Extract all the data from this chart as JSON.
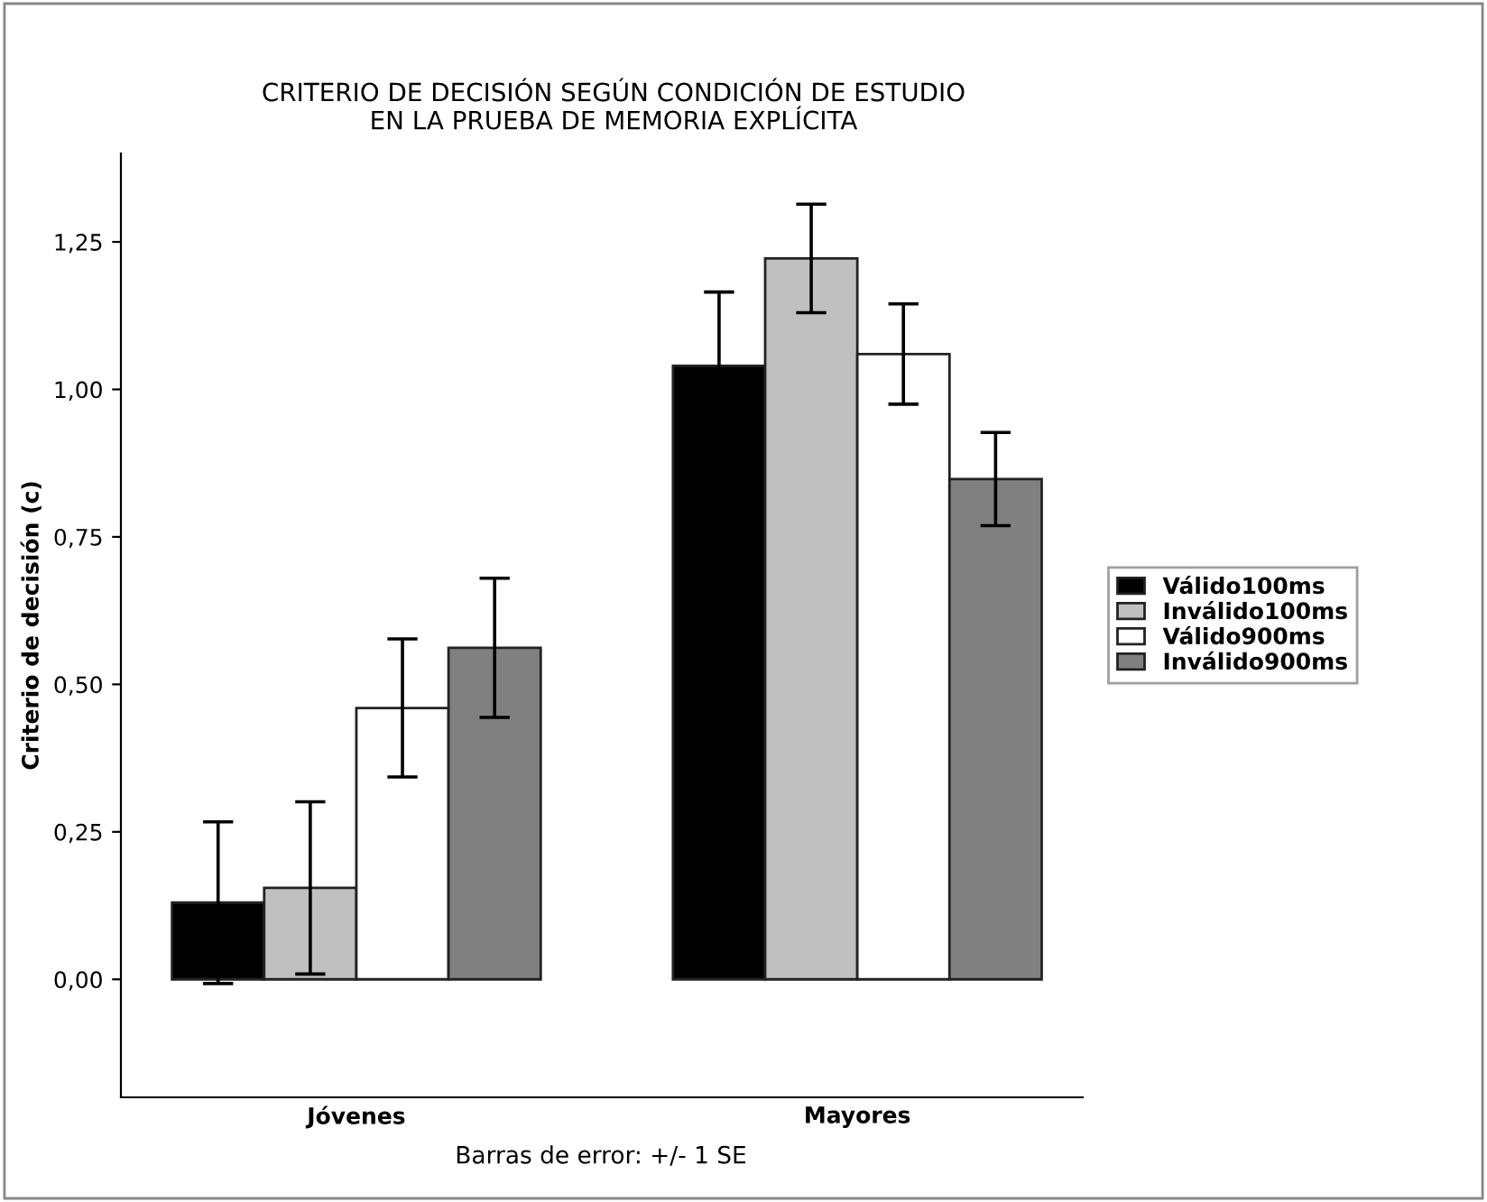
{
  "chart_data": {
    "type": "bar",
    "title": "CRITERIO DE DECISIÓN SEGÚN CONDICIÓN DE ESTUDIO\nEN LA PRUEBA DE MEMORIA EXPLÍCITA",
    "ylabel": "Criterio de decisión (c)",
    "categories": [
      "Jóvenes",
      "Mayores"
    ],
    "series": [
      {
        "name": "Válido100ms",
        "color": "#000000",
        "values": [
          0.13,
          1.04
        ],
        "errors": [
          0.137,
          0.125
        ]
      },
      {
        "name": "Inválido100ms",
        "color": "#c0c0c0",
        "values": [
          0.155,
          1.222
        ],
        "errors": [
          0.146,
          0.092
        ]
      },
      {
        "name": "Válido900ms",
        "color": "#ffffff",
        "values": [
          0.46,
          1.06
        ],
        "errors": [
          0.117,
          0.085
        ]
      },
      {
        "name": "Inválido900ms",
        "color": "#808080",
        "values": [
          0.562,
          0.848
        ],
        "errors": [
          0.118,
          0.079
        ]
      }
    ],
    "ylim": [
      -0.2,
      1.4
    ],
    "yticks": [
      {
        "value": 0,
        "label": "0,00"
      },
      {
        "value": 0.25,
        "label": "0,25"
      },
      {
        "value": 0.5,
        "label": "0,50"
      },
      {
        "value": 0.75,
        "label": "0,75"
      },
      {
        "value": 1,
        "label": "1,00"
      },
      {
        "value": 1.25,
        "label": "1,25"
      }
    ],
    "grid": false,
    "legend": "right",
    "annotations": [
      "Barras de error: +/- 1 SE"
    ]
  }
}
